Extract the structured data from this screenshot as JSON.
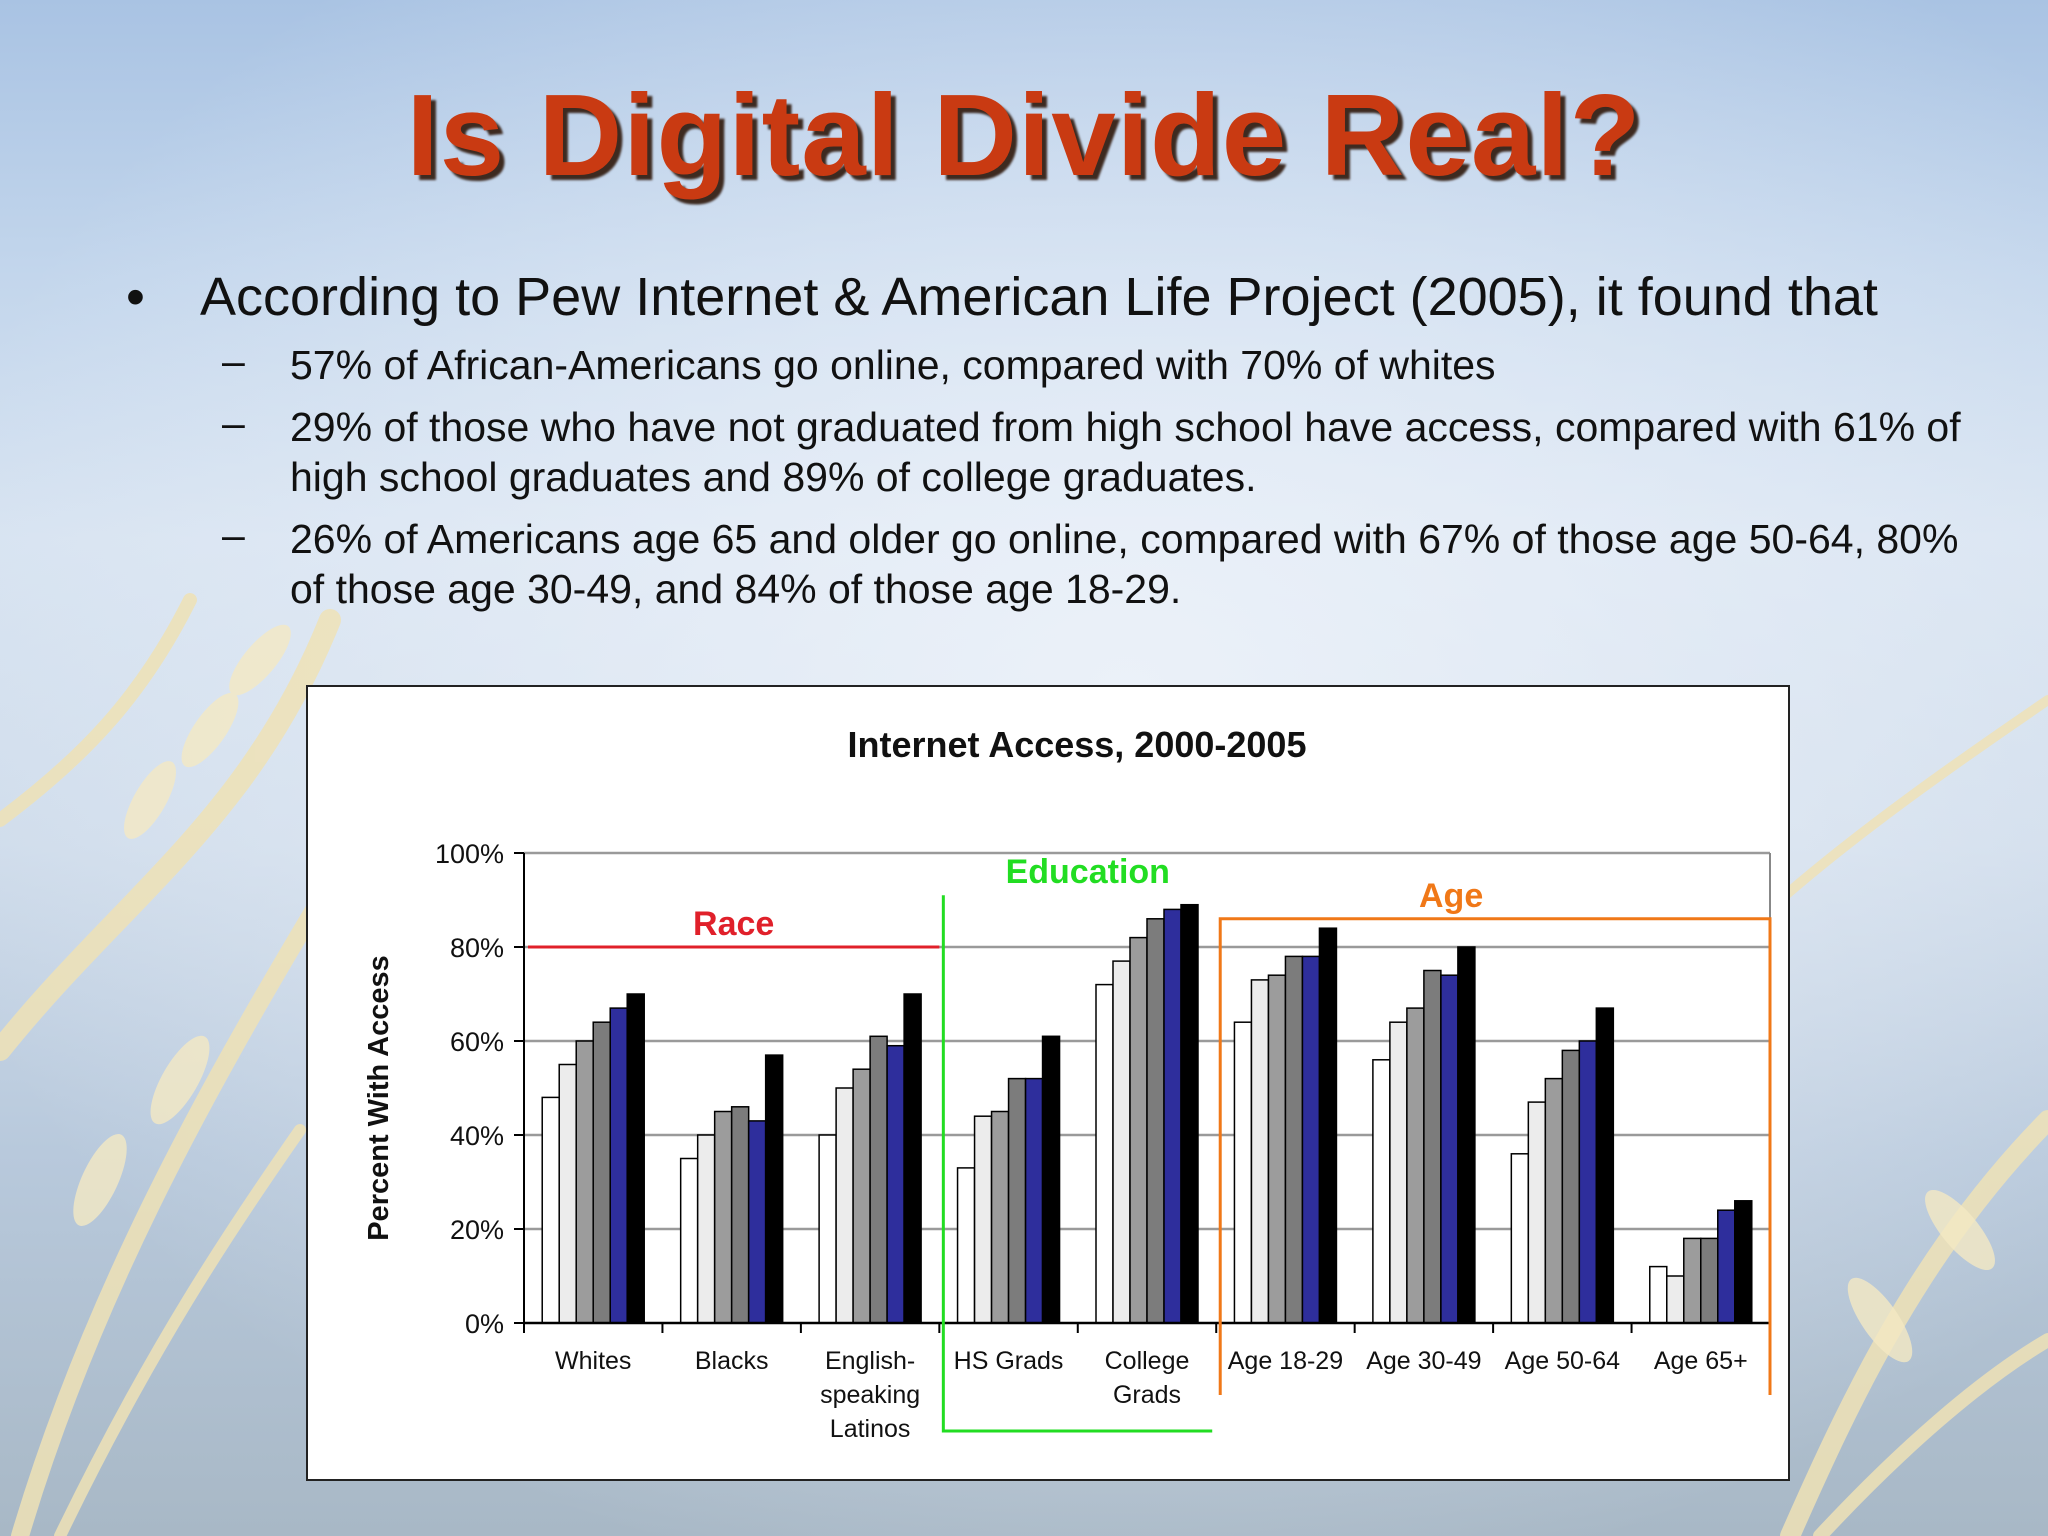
{
  "slide": {
    "title": "Is Digital Divide Real?",
    "bullet_symbol": "•",
    "dash_symbol": "–",
    "bullet": "According to Pew Internet & American Life Project (2005), it found that",
    "sub_points": [
      "57% of African-Americans go online, compared with 70% of whites",
      "29% of those who have not graduated from high school have access, compared with 61% of high school graduates and 89% of college graduates.",
      "26% of Americans age 65 and older go online, compared with 67% of those age 50-64, 80% of those age 30-49, and 84% of those age 18-29."
    ]
  },
  "colors": {
    "title": "#c93a12",
    "race": "#e0202a",
    "education": "#22dd22",
    "age": "#f07818",
    "series": [
      "#ffffff",
      "#ececec",
      "#9c9c9c",
      "#7c7c7c",
      "#2e2e9c",
      "#000000"
    ]
  },
  "chart_data": {
    "type": "bar",
    "title": "Internet Access, 2000-2005",
    "ylabel": "Percent With Access",
    "xlabel": "",
    "ylim": [
      0,
      100
    ],
    "yticks": [
      "0%",
      "20%",
      "40%",
      "60%",
      "80%",
      "100%"
    ],
    "grid": true,
    "categories": [
      "Whites",
      "Blacks",
      "English-speaking Latinos",
      "HS Grads",
      "College Grads",
      "Age 18-29",
      "Age 30-49",
      "Age 50-64",
      "Age 65+"
    ],
    "series": [
      {
        "values": [
          48,
          35,
          40,
          33,
          72,
          64,
          56,
          36,
          12
        ]
      },
      {
        "values": [
          55,
          40,
          50,
          44,
          77,
          73,
          64,
          47,
          10
        ]
      },
      {
        "values": [
          60,
          45,
          54,
          45,
          82,
          74,
          67,
          52,
          18
        ]
      },
      {
        "values": [
          64,
          46,
          61,
          52,
          86,
          78,
          75,
          58,
          18
        ]
      },
      {
        "values": [
          67,
          43,
          59,
          52,
          88,
          78,
          74,
          60,
          24
        ]
      },
      {
        "values": [
          70,
          57,
          70,
          61,
          89,
          84,
          80,
          67,
          26
        ]
      }
    ],
    "groups": [
      {
        "label": "Race",
        "categories": [
          0,
          2
        ]
      },
      {
        "label": "Education",
        "categories": [
          3,
          4
        ]
      },
      {
        "label": "Age",
        "categories": [
          5,
          8
        ]
      }
    ]
  }
}
